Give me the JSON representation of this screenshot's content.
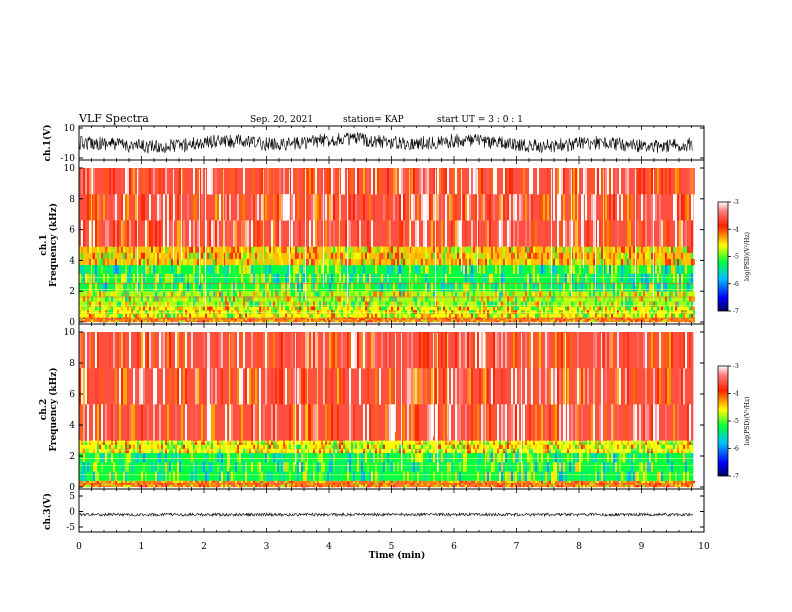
{
  "header": {
    "title": "VLF Spectra",
    "date": "Sep. 20, 2021",
    "station": "station= KAP",
    "start": "start  UT =   3  : 0   : 1"
  },
  "chart_data": [
    {
      "type": "line",
      "name": "ch1-waveform",
      "ylabel": "ch.1(V)",
      "ylim": [
        -10,
        10
      ],
      "yticks": [
        "10",
        "-10"
      ],
      "xlim": [
        0,
        10
      ],
      "x_end": 9.83,
      "description_color": "#000000"
    },
    {
      "type": "heatmap",
      "name": "ch1-spectrogram",
      "ylabel": "ch.1\nFrequency (kHz)",
      "ylabel_lines": [
        "ch.1",
        "Frequency  (kHz)"
      ],
      "ylim": [
        0,
        10
      ],
      "yticks": [
        "0",
        "2",
        "4",
        "6",
        "8",
        "10"
      ],
      "xlim": [
        0,
        10
      ],
      "x_end": 9.83,
      "colorbar": {
        "label": "log(PSD)(V²/Hz)",
        "range": [
          -7,
          -3
        ],
        "ticks": [
          "-3",
          "-4",
          "-5",
          "-6",
          "-7"
        ]
      },
      "bands_khz": [
        {
          "from": 0.0,
          "to": 0.3,
          "level": -4.2
        },
        {
          "from": 0.3,
          "to": 1.0,
          "level": -4.6
        },
        {
          "from": 1.0,
          "to": 2.0,
          "level": -4.8
        },
        {
          "from": 2.0,
          "to": 3.7,
          "level": -5.2
        },
        {
          "from": 3.7,
          "to": 4.9,
          "level": -4.4
        },
        {
          "from": 4.9,
          "to": 10.0,
          "level": -3.6
        }
      ]
    },
    {
      "type": "heatmap",
      "name": "ch2-spectrogram",
      "ylabel_lines": [
        "ch.2",
        "Frequency  (kHz)"
      ],
      "ylim": [
        0,
        10
      ],
      "yticks": [
        "0",
        "2",
        "4",
        "6",
        "8",
        "10"
      ],
      "xlim": [
        0,
        10
      ],
      "x_end": 9.83,
      "colorbar": {
        "label": "log(PSD)(V²/Hz)",
        "range": [
          -7,
          -3
        ],
        "ticks": [
          "-3",
          "-4",
          "-5",
          "-6",
          "-7"
        ]
      },
      "bands_khz": [
        {
          "from": 0.0,
          "to": 0.4,
          "level": -4.2
        },
        {
          "from": 0.4,
          "to": 2.2,
          "level": -5.2
        },
        {
          "from": 2.2,
          "to": 3.0,
          "level": -4.6
        },
        {
          "from": 3.0,
          "to": 10.0,
          "level": -3.6
        }
      ]
    },
    {
      "type": "line",
      "name": "ch3-waveform",
      "ylabel": "ch.3(V)",
      "ylim": [
        -5,
        5
      ],
      "yticks": [
        "5",
        "0",
        "-5"
      ],
      "xlim": [
        0,
        10
      ],
      "x_end": 9.83,
      "baseline": -1.0
    }
  ],
  "xaxis": {
    "label": "Time  (min)",
    "ticks": [
      "0",
      "1",
      "2",
      "3",
      "4",
      "5",
      "6",
      "7",
      "8",
      "9",
      "10"
    ]
  }
}
